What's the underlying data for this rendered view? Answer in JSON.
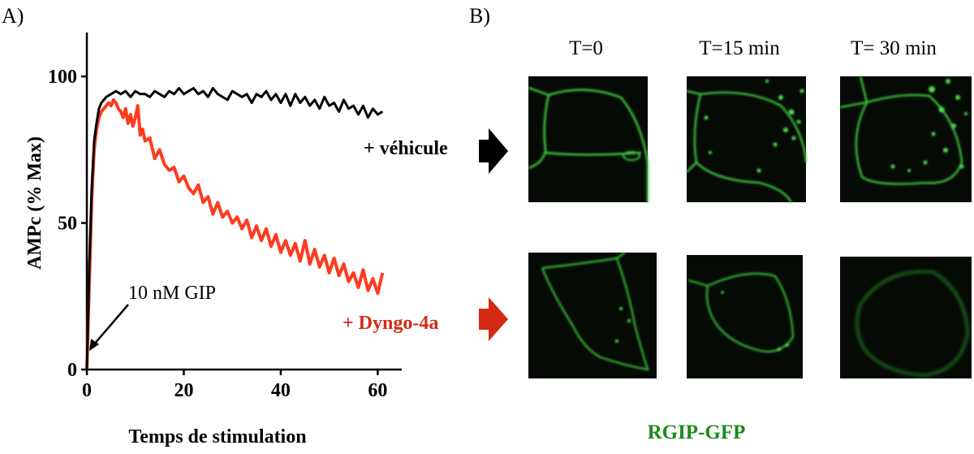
{
  "panel_a_label": "A)",
  "panel_b_label": "B)",
  "chart_data": {
    "type": "line",
    "xlabel": "Temps de stimulation",
    "ylabel": "AMPc  (% Max)",
    "xlim": [
      0,
      65
    ],
    "ylim": [
      0,
      115
    ],
    "xticks": [
      0,
      20,
      40,
      60
    ],
    "yticks": [
      0,
      50,
      100
    ],
    "grid": false,
    "annotation": {
      "text": "10 nM GIP",
      "points_to": [
        0.8,
        3
      ]
    },
    "series": [
      {
        "name": "+ véhicule",
        "color": "#000000",
        "x": [
          0,
          0.5,
          1,
          1.5,
          2,
          2.5,
          3,
          3.5,
          4,
          5,
          6,
          7,
          8,
          9,
          10,
          11,
          12,
          13,
          14,
          15,
          16,
          17,
          18,
          19,
          20,
          21,
          22,
          23,
          24,
          25,
          26,
          27,
          28,
          29,
          30,
          31,
          32,
          33,
          34,
          35,
          36,
          37,
          38,
          39,
          40,
          41,
          42,
          43,
          44,
          45,
          46,
          47,
          48,
          49,
          50,
          51,
          52,
          53,
          54,
          55,
          56,
          57,
          58,
          59,
          60,
          61
        ],
        "values": [
          0,
          35,
          62,
          78,
          84,
          89,
          91,
          92,
          93,
          94,
          95,
          94,
          95,
          93,
          95,
          94,
          94,
          93,
          95,
          94,
          93,
          95,
          94,
          96,
          94,
          95,
          96,
          94,
          95,
          93,
          96,
          94,
          93,
          92,
          95,
          94,
          93,
          94,
          91,
          94,
          93,
          95,
          92,
          94,
          91,
          94,
          90,
          94,
          91,
          93,
          90,
          92,
          89,
          93,
          90,
          91,
          88,
          92,
          89,
          90,
          87,
          90,
          86,
          89,
          87,
          88
        ]
      },
      {
        "name": "+ Dyngo-4a",
        "color": "#ff3b1f",
        "x": [
          0,
          0.5,
          1,
          1.5,
          2,
          2.5,
          3,
          3.5,
          4,
          4.5,
          5,
          5.5,
          6,
          6.5,
          7,
          7.5,
          8,
          8.5,
          9,
          9.5,
          10,
          10.5,
          11,
          11.5,
          12,
          13,
          14,
          15,
          16,
          17,
          18,
          19,
          20,
          21,
          22,
          23,
          24,
          25,
          26,
          27,
          28,
          29,
          30,
          31,
          32,
          33,
          34,
          35,
          36,
          37,
          38,
          39,
          40,
          41,
          42,
          43,
          44,
          45,
          46,
          47,
          48,
          49,
          50,
          51,
          52,
          53,
          54,
          55,
          56,
          57,
          58,
          59,
          60,
          61
        ],
        "values": [
          0,
          30,
          58,
          75,
          82,
          86,
          88,
          89,
          90,
          91,
          90,
          92,
          91,
          89,
          88,
          86,
          89,
          84,
          87,
          83,
          86,
          90,
          80,
          82,
          78,
          79,
          72,
          75,
          70,
          68,
          69,
          64,
          66,
          62,
          60,
          63,
          57,
          59,
          53,
          57,
          52,
          54,
          50,
          52,
          48,
          51,
          45,
          49,
          44,
          48,
          42,
          46,
          40,
          44,
          39,
          43,
          37,
          44,
          36,
          41,
          35,
          39,
          33,
          38,
          32,
          36,
          30,
          33,
          28,
          34,
          27,
          31,
          26,
          33
        ]
      }
    ]
  },
  "panel_b": {
    "columns": [
      "T=0",
      "T=15 min",
      "T= 30 min"
    ],
    "rows": [
      "+ véhicule",
      "+ Dyngo-4a"
    ],
    "caption": "RGIP-GFP",
    "colors": {
      "black_arrow": "#000000",
      "red_arrow": "#d42a14",
      "green": "#1b8a1b",
      "image_bg": "#050a05"
    }
  }
}
